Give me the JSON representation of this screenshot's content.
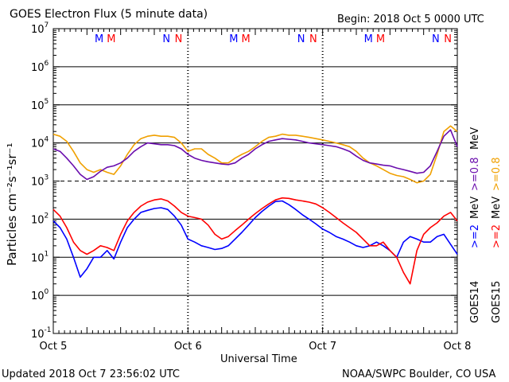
{
  "title": "GOES Electron Flux (5 minute data)",
  "begin": "Begin: 2018 Oct 5 0000 UTC",
  "updated": "Updated 2018 Oct  7 23:56:02 UTC",
  "credit": "NOAA/SWPC Boulder, CO USA",
  "ylabel": "Particles cm⁻²s⁻¹sr⁻¹",
  "xlabel": "Universal Time",
  "markers": {
    "m_label": "M",
    "n_label": "N",
    "goes14_m": [
      0.34,
      1.34,
      2.34
    ],
    "goes15_m": [
      0.43,
      1.43,
      2.43
    ],
    "goes14_n": [
      0.84,
      1.84,
      2.84
    ],
    "goes15_n": [
      0.93,
      1.93,
      2.93
    ]
  },
  "colors": {
    "goes14_hi": "#6a0dad",
    "goes15_hi": "#f0a000",
    "goes14_lo": "#0000ff",
    "goes15_lo": "#ff0000",
    "m_goes14": "#0000ff",
    "m_goes15": "#ff0000"
  },
  "legend": {
    "goes14": "GOES14",
    "goes15": "GOES15",
    "lo_energy": ">=2",
    "hi_energy": ">=0.8",
    "unit": "MeV"
  },
  "chart_data": {
    "type": "line",
    "title": "GOES Electron Flux (5 minute data)",
    "xlabel": "Universal Time",
    "ylabel": "Particles cm⁻²s⁻¹sr⁻¹",
    "yscale": "log",
    "ylim": [
      0.1,
      10000000
    ],
    "xlim_days": [
      0,
      3
    ],
    "xticks": [
      "Oct 5",
      "Oct 6",
      "Oct 7",
      "Oct 8"
    ],
    "ytick_labels": [
      {
        "base": "10",
        "exp": "-1"
      },
      {
        "base": "10",
        "exp": "0"
      },
      {
        "base": "10",
        "exp": "1"
      },
      {
        "base": "10",
        "exp": "2"
      },
      {
        "base": "10",
        "exp": "3"
      },
      {
        "base": "10",
        "exp": "4"
      },
      {
        "base": "10",
        "exp": "5"
      },
      {
        "base": "10",
        "exp": "6"
      },
      {
        "base": "10",
        "exp": "7"
      }
    ],
    "threshold_lines": [
      {
        "y": 1000,
        "style": "dashed"
      }
    ],
    "series": [
      {
        "name": "GOES15 >=0.8 MeV",
        "x": [
          0.0,
          0.05,
          0.1,
          0.15,
          0.2,
          0.25,
          0.3,
          0.35,
          0.4,
          0.45,
          0.5,
          0.55,
          0.6,
          0.65,
          0.7,
          0.75,
          0.8,
          0.85,
          0.9,
          0.95,
          1.0,
          1.05,
          1.1,
          1.15,
          1.2,
          1.25,
          1.3,
          1.35,
          1.4,
          1.45,
          1.5,
          1.55,
          1.6,
          1.65,
          1.7,
          1.75,
          1.8,
          1.85,
          1.9,
          1.95,
          2.0,
          2.05,
          2.1,
          2.15,
          2.2,
          2.25,
          2.3,
          2.35,
          2.4,
          2.45,
          2.5,
          2.55,
          2.6,
          2.65,
          2.7,
          2.75,
          2.8,
          2.85,
          2.9,
          2.95,
          3.0
        ],
        "y": [
          17000,
          15000,
          11000,
          6000,
          3000,
          2000,
          1700,
          2000,
          1700,
          1500,
          2500,
          5000,
          9000,
          13000,
          15000,
          16000,
          15000,
          15000,
          14000,
          10000,
          6000,
          7000,
          7000,
          5000,
          4000,
          3000,
          3000,
          4000,
          5000,
          6000,
          8000,
          11000,
          14000,
          15000,
          17000,
          16000,
          16000,
          15000,
          14000,
          13000,
          12000,
          11000,
          10000,
          9000,
          8000,
          6000,
          4000,
          3000,
          2500,
          2000,
          1600,
          1400,
          1300,
          1100,
          900,
          1000,
          1500,
          5000,
          20000,
          28000,
          20000
        ]
      },
      {
        "name": "GOES14 >=0.8 MeV",
        "x": [
          0.0,
          0.05,
          0.1,
          0.15,
          0.2,
          0.25,
          0.3,
          0.35,
          0.4,
          0.45,
          0.5,
          0.55,
          0.6,
          0.65,
          0.7,
          0.75,
          0.8,
          0.85,
          0.9,
          0.95,
          1.0,
          1.05,
          1.1,
          1.15,
          1.2,
          1.25,
          1.3,
          1.35,
          1.4,
          1.45,
          1.5,
          1.55,
          1.6,
          1.65,
          1.7,
          1.75,
          1.8,
          1.85,
          1.9,
          1.95,
          2.0,
          2.05,
          2.1,
          2.15,
          2.2,
          2.25,
          2.3,
          2.35,
          2.4,
          2.45,
          2.5,
          2.55,
          2.6,
          2.65,
          2.7,
          2.75,
          2.8,
          2.85,
          2.9,
          2.95,
          3.0
        ],
        "y": [
          7000,
          6000,
          4000,
          2500,
          1500,
          1100,
          1300,
          1800,
          2300,
          2500,
          3000,
          4000,
          6000,
          8000,
          10000,
          9500,
          9000,
          9000,
          8500,
          7000,
          5000,
          4000,
          3500,
          3200,
          3000,
          2800,
          2700,
          3000,
          4000,
          5000,
          7000,
          9000,
          11000,
          12000,
          13000,
          12500,
          12000,
          11000,
          10000,
          9500,
          9000,
          8500,
          8000,
          7000,
          6000,
          4500,
          3500,
          3000,
          2800,
          2600,
          2500,
          2200,
          2000,
          1800,
          1600,
          1700,
          2500,
          6000,
          15000,
          22000,
          8000
        ]
      },
      {
        "name": "GOES14 >=2 MeV",
        "x": [
          0.0,
          0.05,
          0.1,
          0.15,
          0.2,
          0.25,
          0.3,
          0.35,
          0.4,
          0.45,
          0.5,
          0.55,
          0.6,
          0.65,
          0.7,
          0.75,
          0.8,
          0.85,
          0.9,
          0.95,
          1.0,
          1.05,
          1.1,
          1.15,
          1.2,
          1.25,
          1.3,
          1.35,
          1.4,
          1.45,
          1.5,
          1.55,
          1.6,
          1.65,
          1.7,
          1.75,
          1.8,
          1.85,
          1.9,
          1.95,
          2.0,
          2.05,
          2.1,
          2.15,
          2.2,
          2.25,
          2.3,
          2.35,
          2.4,
          2.45,
          2.5,
          2.55,
          2.6,
          2.65,
          2.7,
          2.75,
          2.8,
          2.85,
          2.9,
          2.95,
          3.0
        ],
        "y": [
          90,
          60,
          30,
          10,
          3,
          5,
          10,
          10,
          15,
          9,
          25,
          60,
          100,
          150,
          170,
          190,
          200,
          180,
          120,
          70,
          30,
          25,
          20,
          18,
          16,
          17,
          20,
          30,
          45,
          70,
          110,
          160,
          220,
          290,
          300,
          240,
          180,
          130,
          100,
          75,
          55,
          45,
          35,
          30,
          25,
          20,
          18,
          20,
          25,
          20,
          15,
          10,
          25,
          35,
          30,
          25,
          25,
          35,
          40,
          22,
          12
        ]
      },
      {
        "name": "GOES15 >=2 MeV",
        "x": [
          0.0,
          0.05,
          0.1,
          0.15,
          0.2,
          0.25,
          0.3,
          0.35,
          0.4,
          0.45,
          0.5,
          0.55,
          0.6,
          0.65,
          0.7,
          0.75,
          0.8,
          0.85,
          0.9,
          0.95,
          1.0,
          1.05,
          1.1,
          1.15,
          1.2,
          1.25,
          1.3,
          1.35,
          1.4,
          1.45,
          1.5,
          1.55,
          1.6,
          1.65,
          1.7,
          1.75,
          1.8,
          1.85,
          1.9,
          1.95,
          2.0,
          2.05,
          2.1,
          2.15,
          2.2,
          2.25,
          2.3,
          2.35,
          2.4,
          2.45,
          2.5,
          2.55,
          2.6,
          2.65,
          2.7,
          2.75,
          2.8,
          2.85,
          2.9,
          2.95,
          3.0
        ],
        "y": [
          180,
          120,
          60,
          25,
          15,
          12,
          15,
          20,
          18,
          15,
          40,
          90,
          150,
          220,
          280,
          320,
          340,
          300,
          220,
          150,
          120,
          110,
          100,
          70,
          40,
          30,
          35,
          50,
          70,
          100,
          140,
          190,
          250,
          320,
          360,
          350,
          320,
          300,
          280,
          250,
          200,
          150,
          110,
          80,
          60,
          45,
          30,
          20,
          20,
          25,
          15,
          10,
          4,
          2,
          15,
          40,
          60,
          80,
          120,
          150,
          90
        ]
      }
    ]
  }
}
